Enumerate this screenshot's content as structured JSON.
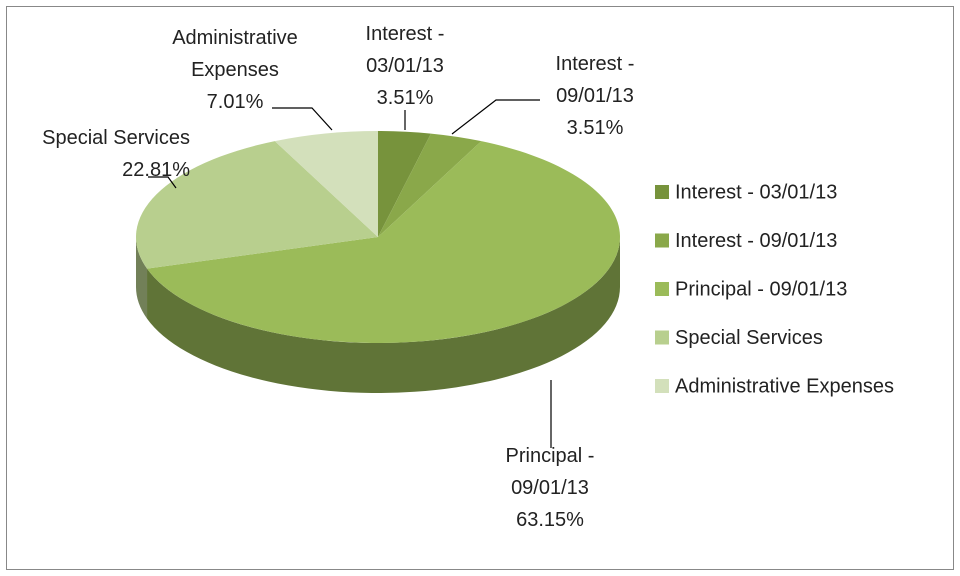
{
  "chart_data": {
    "type": "pie",
    "categories": [
      "Interest - 03/01/13",
      "Interest - 09/01/13",
      "Principal - 09/01/13",
      "Special Services",
      "Administrative Expenses"
    ],
    "values": [
      3.51,
      3.51,
      63.15,
      22.81,
      7.01
    ],
    "value_labels": [
      "3.51%",
      "3.51%",
      "63.15%",
      "22.81%",
      "7.01%"
    ],
    "colors": [
      "#77933c",
      "#8aa84a",
      "#9bbb59",
      "#b8cf8e",
      "#d3e0bb"
    ],
    "legend": "right"
  }
}
